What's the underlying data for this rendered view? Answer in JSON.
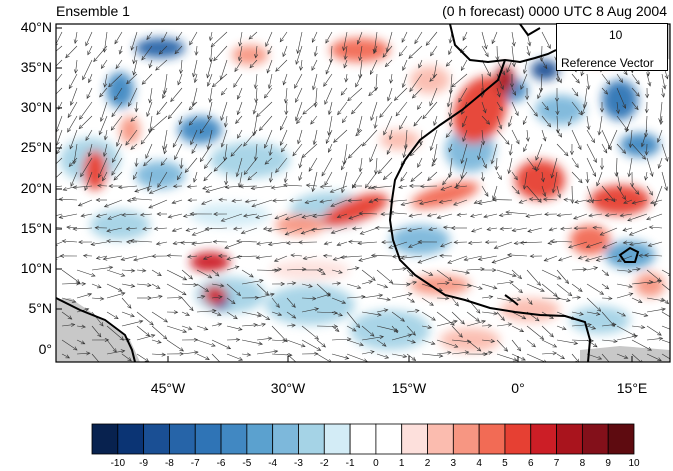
{
  "title_left": "Ensemble 1",
  "title_right": "(0 h forecast) 0000 UTC 8 Aug 2004",
  "lat_labels": [
    "40°N",
    "35°N",
    "30°N",
    "25°N",
    "20°N",
    "15°N",
    "10°N",
    "5°N",
    "0°"
  ],
  "lon_labels": [
    "45°W",
    "30°W",
    "15°W",
    "0°",
    "15°E"
  ],
  "reference_vector": {
    "value": "10",
    "label": "Reference Vector"
  },
  "colorbar": {
    "labels": [
      "-10",
      "-9",
      "-8",
      "-7",
      "-6",
      "-5",
      "-4",
      "-3",
      "-2",
      "-1",
      "0",
      "1",
      "2",
      "3",
      "4",
      "5",
      "6",
      "7",
      "8",
      "9",
      "10"
    ],
    "colors": [
      "#08224f",
      "#0b3474",
      "#1a4f94",
      "#2664a8",
      "#2f74b6",
      "#4188c2",
      "#5ba1cf",
      "#7db8db",
      "#a5d3e6",
      "#d3ecf6",
      "#ffffff",
      "#ffffff",
      "#fde0dc",
      "#fbbcaf",
      "#f79682",
      "#f26b55",
      "#e64033",
      "#cc1e26",
      "#a9141d",
      "#83101a",
      "#5e0b10"
    ]
  },
  "map": {
    "region": "Tropical Atlantic / West Africa",
    "lat_range": [
      0,
      40
    ],
    "lon_range": [
      -57,
      20
    ],
    "fill_colors": {
      "land_gray": "#c8c8c8",
      "coast": "#000000"
    }
  }
}
